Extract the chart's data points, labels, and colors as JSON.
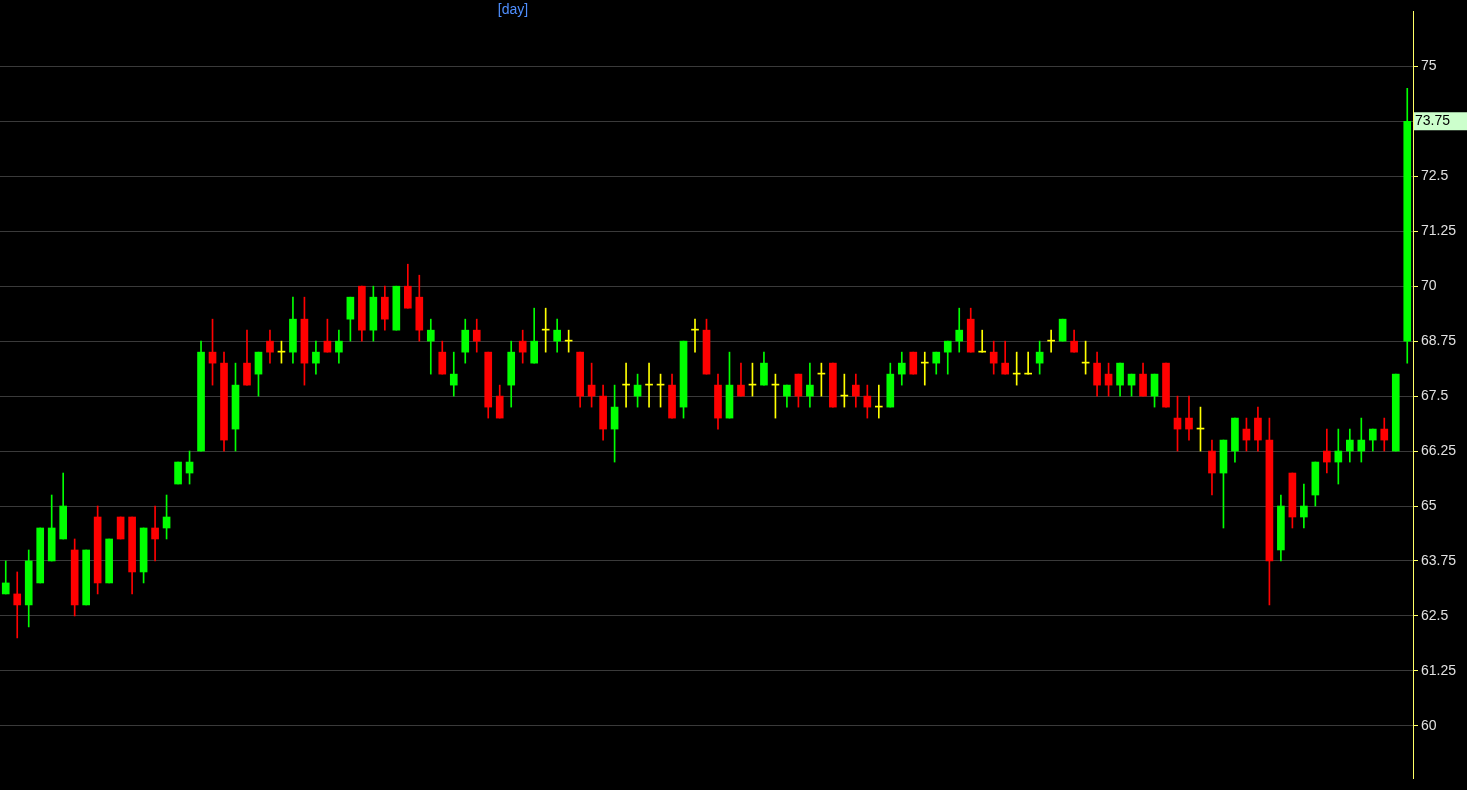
{
  "chart_data": {
    "type": "candlestick",
    "title": "[day]",
    "categories": [
      null,
      null,
      null,
      null,
      null,
      null,
      null,
      null,
      null,
      null,
      null,
      null,
      null,
      null,
      null,
      null,
      null,
      null,
      null,
      null,
      null,
      null,
      null,
      null,
      null,
      null,
      null,
      null,
      null,
      null,
      null,
      null,
      null,
      null,
      null,
      null,
      null,
      null,
      null,
      null,
      null,
      null,
      null,
      null,
      null,
      null,
      null,
      null,
      null,
      null,
      null,
      null,
      null,
      null,
      null,
      null,
      null,
      null,
      null,
      null,
      null,
      null,
      null,
      null,
      null,
      null,
      null,
      null,
      null,
      null,
      null,
      null,
      null,
      null,
      null,
      null,
      null,
      null,
      null,
      null,
      null,
      null,
      null,
      null,
      null,
      null,
      null,
      null,
      null,
      null,
      null,
      null,
      null,
      null,
      null,
      null,
      null,
      null,
      null,
      null,
      null,
      null,
      null,
      null,
      null,
      null,
      null,
      null,
      null,
      null,
      null,
      null,
      null,
      null,
      null,
      null,
      null,
      null,
      null,
      null,
      null,
      null,
      null
    ],
    "ohlc": [
      [
        63.0,
        63.75,
        63.0,
        63.25
      ],
      [
        63.0,
        63.5,
        62.0,
        62.75
      ],
      [
        62.75,
        64.0,
        62.25,
        63.75
      ],
      [
        63.25,
        64.5,
        63.25,
        64.5
      ],
      [
        63.75,
        65.25,
        63.75,
        64.5
      ],
      [
        64.25,
        65.75,
        64.25,
        65.0
      ],
      [
        64.0,
        64.25,
        62.5,
        62.75
      ],
      [
        62.75,
        64.0,
        62.75,
        64.0
      ],
      [
        64.75,
        65.0,
        63.0,
        63.25
      ],
      [
        63.25,
        64.25,
        63.25,
        64.25
      ],
      [
        64.75,
        64.75,
        64.25,
        64.25
      ],
      [
        64.75,
        64.75,
        63.0,
        63.5
      ],
      [
        63.5,
        64.5,
        63.25,
        64.5
      ],
      [
        64.5,
        65.0,
        63.75,
        64.25
      ],
      [
        64.5,
        65.25,
        64.25,
        64.75
      ],
      [
        65.5,
        66.0,
        65.5,
        66.0
      ],
      [
        65.75,
        66.25,
        65.5,
        66.0
      ],
      [
        66.25,
        68.75,
        66.25,
        68.5
      ],
      [
        68.5,
        69.25,
        67.75,
        68.25
      ],
      [
        68.25,
        68.5,
        66.25,
        66.5
      ],
      [
        66.75,
        68.25,
        66.25,
        67.75
      ],
      [
        68.25,
        69.0,
        67.75,
        67.75
      ],
      [
        68.0,
        68.5,
        67.5,
        68.5
      ],
      [
        68.75,
        69.0,
        68.25,
        68.5
      ],
      [
        68.5,
        68.75,
        68.25,
        68.5
      ],
      [
        68.5,
        69.75,
        68.25,
        69.25
      ],
      [
        69.25,
        69.75,
        67.75,
        68.25
      ],
      [
        68.25,
        68.75,
        68.0,
        68.5
      ],
      [
        68.75,
        69.25,
        68.5,
        68.5
      ],
      [
        68.5,
        69.0,
        68.25,
        68.75
      ],
      [
        69.25,
        69.75,
        68.75,
        69.75
      ],
      [
        70.0,
        70.0,
        68.75,
        69.0
      ],
      [
        69.0,
        70.0,
        68.75,
        69.75
      ],
      [
        69.75,
        70.0,
        69.0,
        69.25
      ],
      [
        69.0,
        70.0,
        69.0,
        70.0
      ],
      [
        70.0,
        70.5,
        69.5,
        69.5
      ],
      [
        69.75,
        70.25,
        68.75,
        69.0
      ],
      [
        68.75,
        69.25,
        68.0,
        69.0
      ],
      [
        68.5,
        68.75,
        68.0,
        68.0
      ],
      [
        67.75,
        68.5,
        67.5,
        68.0
      ],
      [
        68.5,
        69.25,
        68.25,
        69.0
      ],
      [
        69.0,
        69.25,
        68.5,
        68.75
      ],
      [
        68.5,
        68.5,
        67.0,
        67.25
      ],
      [
        67.5,
        67.75,
        67.0,
        67.0
      ],
      [
        67.75,
        68.75,
        67.25,
        68.5
      ],
      [
        68.75,
        69.0,
        68.25,
        68.5
      ],
      [
        68.25,
        69.5,
        68.25,
        68.75
      ],
      [
        69.0,
        69.5,
        68.5,
        69.0
      ],
      [
        68.75,
        69.25,
        68.5,
        69.0
      ],
      [
        68.75,
        69.0,
        68.5,
        68.75
      ],
      [
        68.5,
        68.5,
        67.25,
        67.5
      ],
      [
        67.75,
        68.25,
        67.25,
        67.5
      ],
      [
        67.5,
        67.75,
        66.5,
        66.75
      ],
      [
        66.75,
        67.75,
        66.0,
        67.25
      ],
      [
        67.75,
        68.25,
        67.25,
        67.75
      ],
      [
        67.5,
        68.0,
        67.25,
        67.75
      ],
      [
        67.75,
        68.25,
        67.25,
        67.75
      ],
      [
        67.75,
        68.0,
        67.25,
        67.75
      ],
      [
        67.75,
        68.0,
        67.0,
        67.0
      ],
      [
        67.25,
        68.75,
        67.0,
        68.75
      ],
      [
        69.0,
        69.25,
        68.5,
        69.0
      ],
      [
        69.0,
        69.25,
        68.0,
        68.0
      ],
      [
        67.75,
        68.0,
        66.75,
        67.0
      ],
      [
        67.0,
        68.5,
        67.0,
        67.75
      ],
      [
        67.75,
        68.25,
        67.5,
        67.5
      ],
      [
        67.75,
        68.25,
        67.5,
        67.75
      ],
      [
        67.75,
        68.5,
        67.75,
        68.25
      ],
      [
        67.75,
        68.0,
        67.0,
        67.75
      ],
      [
        67.5,
        67.75,
        67.25,
        67.75
      ],
      [
        68.0,
        68.0,
        67.25,
        67.5
      ],
      [
        67.5,
        68.25,
        67.25,
        67.75
      ],
      [
        68.0,
        68.25,
        67.5,
        68.0
      ],
      [
        68.25,
        68.25,
        67.25,
        67.25
      ],
      [
        67.5,
        68.0,
        67.25,
        67.5
      ],
      [
        67.75,
        68.0,
        67.25,
        67.5
      ],
      [
        67.5,
        67.75,
        67.0,
        67.25
      ],
      [
        67.25,
        67.75,
        67.0,
        67.25
      ],
      [
        67.25,
        68.25,
        67.25,
        68.0
      ],
      [
        68.0,
        68.5,
        67.75,
        68.25
      ],
      [
        68.5,
        68.5,
        68.0,
        68.0
      ],
      [
        68.25,
        68.5,
        67.75,
        68.25
      ],
      [
        68.25,
        68.5,
        68.0,
        68.5
      ],
      [
        68.5,
        68.75,
        68.0,
        68.75
      ],
      [
        68.75,
        69.5,
        68.5,
        69.0
      ],
      [
        69.25,
        69.5,
        68.5,
        68.5
      ],
      [
        68.5,
        69.0,
        68.5,
        68.5
      ],
      [
        68.5,
        68.75,
        68.0,
        68.25
      ],
      [
        68.25,
        68.75,
        68.0,
        68.0
      ],
      [
        68.0,
        68.5,
        67.75,
        68.0
      ],
      [
        68.0,
        68.5,
        68.0,
        68.0
      ],
      [
        68.25,
        68.75,
        68.0,
        68.5
      ],
      [
        68.75,
        69.0,
        68.5,
        68.75
      ],
      [
        68.75,
        69.25,
        68.75,
        69.25
      ],
      [
        68.75,
        69.0,
        68.5,
        68.5
      ],
      [
        68.25,
        68.75,
        68.0,
        68.25
      ],
      [
        68.25,
        68.5,
        67.5,
        67.75
      ],
      [
        68.0,
        68.25,
        67.5,
        67.75
      ],
      [
        67.75,
        68.25,
        67.5,
        68.25
      ],
      [
        67.75,
        68.0,
        67.5,
        68.0
      ],
      [
        68.0,
        68.25,
        67.5,
        67.5
      ],
      [
        67.5,
        68.0,
        67.25,
        68.0
      ],
      [
        68.25,
        68.25,
        67.25,
        67.25
      ],
      [
        67.0,
        67.5,
        66.25,
        66.75
      ],
      [
        67.0,
        67.5,
        66.5,
        66.75
      ],
      [
        66.75,
        67.25,
        66.25,
        66.75
      ],
      [
        66.25,
        66.5,
        65.25,
        65.75
      ],
      [
        65.75,
        66.5,
        64.5,
        66.5
      ],
      [
        66.25,
        67.0,
        66.0,
        67.0
      ],
      [
        66.75,
        67.0,
        66.25,
        66.5
      ],
      [
        67.0,
        67.25,
        66.25,
        66.5
      ],
      [
        66.5,
        67.0,
        62.75,
        63.75
      ],
      [
        64.0,
        65.25,
        63.75,
        65.0
      ],
      [
        65.75,
        65.75,
        64.5,
        64.75
      ],
      [
        64.75,
        65.5,
        64.5,
        65.0
      ],
      [
        65.25,
        66.0,
        65.0,
        66.0
      ],
      [
        66.25,
        66.75,
        65.75,
        66.0
      ],
      [
        66.0,
        66.75,
        65.5,
        66.25
      ],
      [
        66.25,
        66.75,
        66.0,
        66.5
      ],
      [
        66.25,
        67.0,
        66.0,
        66.5
      ],
      [
        66.5,
        66.75,
        66.25,
        66.75
      ],
      [
        66.75,
        67.0,
        66.25,
        66.5
      ],
      [
        66.25,
        68.0,
        66.25,
        68.0
      ],
      [
        68.75,
        74.5,
        68.25,
        73.75
      ]
    ],
    "colors": [
      "#00ff00",
      "#ff0000",
      "#00ff00",
      "#00ff00",
      "#00ff00",
      "#00ff00",
      "#ff0000",
      "#00ff00",
      "#ff0000",
      "#00ff00",
      "#ff0000",
      "#ff0000",
      "#00ff00",
      "#ff0000",
      "#00ff00",
      "#00ff00",
      "#00ff00",
      "#00ff00",
      "#ff0000",
      "#ff0000",
      "#00ff00",
      "#ff0000",
      "#00ff00",
      "#ff0000",
      "#ffff00",
      "#00ff00",
      "#ff0000",
      "#00ff00",
      "#ff0000",
      "#00ff00",
      "#00ff00",
      "#ff0000",
      "#00ff00",
      "#ff0000",
      "#00ff00",
      "#ff0000",
      "#ff0000",
      "#00ff00",
      "#ff0000",
      "#00ff00",
      "#00ff00",
      "#ff0000",
      "#ff0000",
      "#ff0000",
      "#00ff00",
      "#ff0000",
      "#00ff00",
      "#ffff00",
      "#00ff00",
      "#ffff00",
      "#ff0000",
      "#ff0000",
      "#ff0000",
      "#00ff00",
      "#ffff00",
      "#00ff00",
      "#ffff00",
      "#ffff00",
      "#ff0000",
      "#00ff00",
      "#ffff00",
      "#ff0000",
      "#ff0000",
      "#00ff00",
      "#ff0000",
      "#ffff00",
      "#00ff00",
      "#ffff00",
      "#00ff00",
      "#ff0000",
      "#00ff00",
      "#ffff00",
      "#ff0000",
      "#ffff00",
      "#ff0000",
      "#ff0000",
      "#ffff00",
      "#00ff00",
      "#00ff00",
      "#ff0000",
      "#ffff00",
      "#00ff00",
      "#00ff00",
      "#00ff00",
      "#ff0000",
      "#ffff00",
      "#ff0000",
      "#ff0000",
      "#ffff00",
      "#ffff00",
      "#00ff00",
      "#ffff00",
      "#00ff00",
      "#ff0000",
      "#ffff00",
      "#ff0000",
      "#ff0000",
      "#00ff00",
      "#00ff00",
      "#ff0000",
      "#00ff00",
      "#ff0000",
      "#ff0000",
      "#ff0000",
      "#ffff00",
      "#ff0000",
      "#00ff00",
      "#00ff00",
      "#ff0000",
      "#ff0000",
      "#ff0000",
      "#00ff00",
      "#ff0000",
      "#00ff00",
      "#00ff00",
      "#ff0000",
      "#00ff00",
      "#00ff00",
      "#00ff00",
      "#00ff00",
      "#ff0000",
      "#00ff00",
      "#00ff00"
    ],
    "ylim": [
      58.8,
      76.25
    ],
    "yticks": [
      60,
      61.25,
      62.5,
      63.75,
      65,
      66.25,
      67.5,
      68.75,
      70,
      71.25,
      72.5,
      {
        "value": 73.75,
        "label": null
      },
      75
    ],
    "grid": "y",
    "tick_labels": "y",
    "annotations": [
      "73.75"
    ]
  }
}
